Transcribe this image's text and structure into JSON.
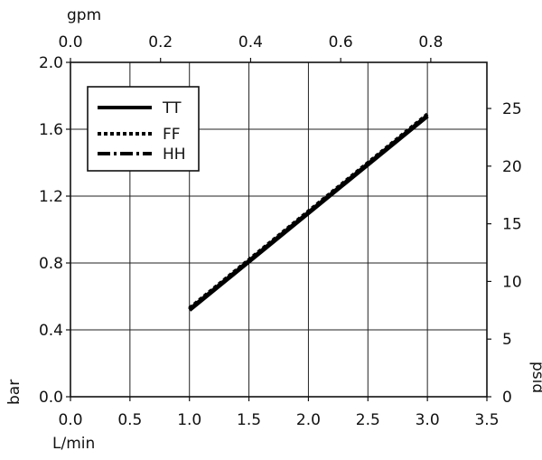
{
  "chart_data": {
    "type": "line",
    "title": "",
    "xlabel": "L/min",
    "ylabel": "bar",
    "x2label": "gpm",
    "y2label": "psid",
    "xlim": [
      0,
      3.5
    ],
    "ylim": [
      0,
      2.0
    ],
    "x2lim": [
      0,
      0.9246
    ],
    "y2lim": [
      0,
      29.0
    ],
    "x_ticks": [
      "0.0",
      "0.5",
      "1.0",
      "1.5",
      "2.0",
      "2.5",
      "3.0",
      "3.5"
    ],
    "y_ticks": [
      "0.0",
      "0.4",
      "0.8",
      "1.2",
      "1.6",
      "2.0"
    ],
    "x2_ticks": [
      "0.0",
      "0.2",
      "0.4",
      "0.6",
      "0.8"
    ],
    "y2_ticks": [
      "0",
      "5",
      "10",
      "15",
      "20",
      "25"
    ],
    "grid": true,
    "legend_position": "top-left",
    "series": [
      {
        "name": "TT",
        "style": "solid",
        "color": "#000000",
        "x": [
          1.0,
          3.0
        ],
        "y": [
          0.52,
          1.68
        ]
      },
      {
        "name": "FF",
        "style": "dotted",
        "color": "#000000",
        "x": [
          1.0,
          3.0
        ],
        "y": [
          0.53,
          1.69
        ]
      },
      {
        "name": "HH",
        "style": "dashdot",
        "color": "#000000",
        "x": [
          1.0,
          3.0
        ],
        "y": [
          0.52,
          1.68
        ]
      }
    ]
  }
}
